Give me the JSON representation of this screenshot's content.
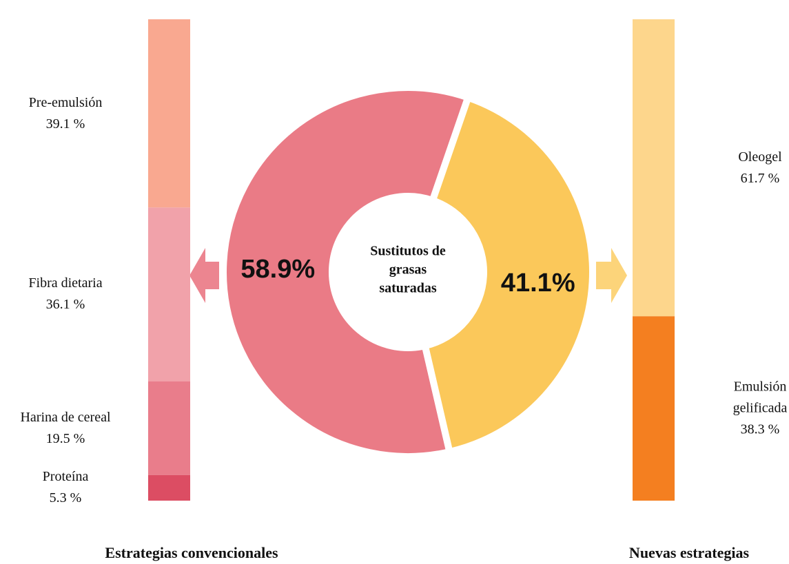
{
  "chart_data": [
    {
      "type": "donut",
      "center_label": "Sustitutos de grasas saturadas",
      "categories": [
        "Estrategias convencionales",
        "Nuevas estrategias"
      ],
      "values": [
        58.9,
        41.1
      ],
      "value_labels": [
        "58.9%",
        "41.1%"
      ],
      "colors": [
        "#ea7b86",
        "#fbc85a"
      ]
    },
    {
      "type": "stacked-bar",
      "title": "Estrategias convencionales",
      "categories": [
        "Pre-emulsión",
        "Fibra dietaria",
        "Harina de cereal",
        "Proteína"
      ],
      "values": [
        39.1,
        36.1,
        19.5,
        5.3
      ],
      "value_labels": [
        "39.1 %",
        "36.1 %",
        "19.5 %",
        "5.3 %"
      ],
      "colors": [
        "#f9a890",
        "#f1a2aa",
        "#e97d8b",
        "#dc4d63"
      ]
    },
    {
      "type": "stacked-bar",
      "title": "Nuevas estrategias",
      "categories": [
        "Oleogel",
        "Emulsión gelificada"
      ],
      "values": [
        61.7,
        38.3
      ],
      "value_labels": [
        "61.7 %",
        "38.3 %"
      ],
      "colors": [
        "#fdd68c",
        "#f47f20"
      ]
    }
  ]
}
